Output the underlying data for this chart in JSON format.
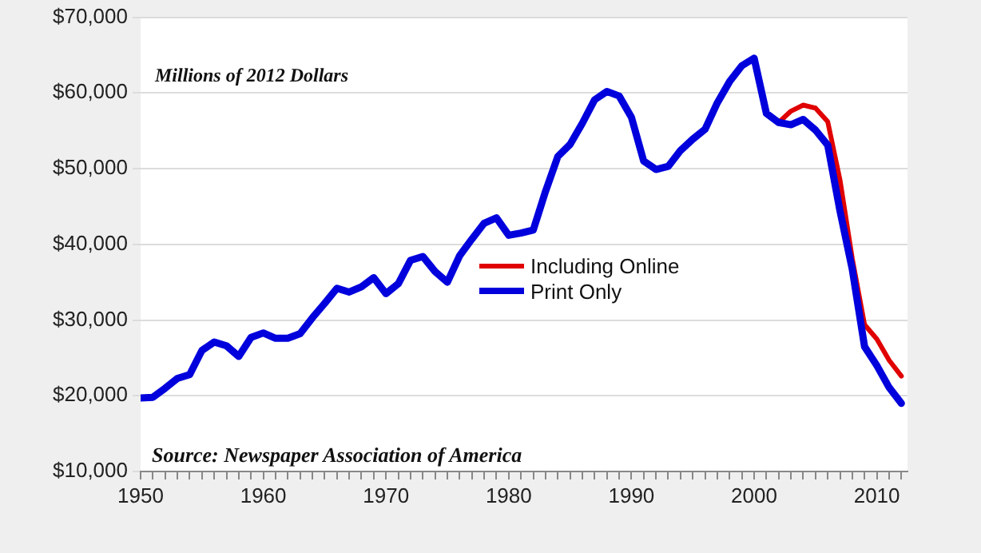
{
  "chart_data": {
    "type": "line",
    "annotations": [
      "Millions of 2012 Dollars",
      "Source: Newspaper Association of America"
    ],
    "x": [
      1950,
      1951,
      1952,
      1953,
      1954,
      1955,
      1956,
      1957,
      1958,
      1959,
      1960,
      1961,
      1962,
      1963,
      1964,
      1965,
      1966,
      1967,
      1968,
      1969,
      1970,
      1971,
      1972,
      1973,
      1974,
      1975,
      1976,
      1977,
      1978,
      1979,
      1980,
      1981,
      1982,
      1983,
      1984,
      1985,
      1986,
      1987,
      1988,
      1989,
      1990,
      1991,
      1992,
      1993,
      1994,
      1995,
      1996,
      1997,
      1998,
      1999,
      2000,
      2001,
      2002,
      2003,
      2004,
      2005,
      2006,
      2007,
      2008,
      2009,
      2010,
      2011,
      2012
    ],
    "series": [
      {
        "name": "Including Online",
        "color": "#e00000",
        "values": [
          null,
          null,
          null,
          null,
          null,
          null,
          null,
          null,
          null,
          null,
          null,
          null,
          null,
          null,
          null,
          null,
          null,
          null,
          null,
          null,
          null,
          null,
          null,
          null,
          null,
          null,
          null,
          null,
          null,
          null,
          null,
          null,
          null,
          null,
          null,
          null,
          null,
          null,
          null,
          null,
          null,
          null,
          null,
          null,
          null,
          null,
          null,
          null,
          null,
          null,
          null,
          null,
          56100,
          57600,
          58400,
          58000,
          56200,
          48500,
          38100,
          29400,
          27500,
          24700,
          22600
        ]
      },
      {
        "name": "Print Only",
        "color": "#0000dd",
        "values": [
          19700,
          19800,
          21000,
          22300,
          22800,
          26000,
          27100,
          26600,
          25200,
          27700,
          28300,
          27600,
          27600,
          28200,
          30300,
          32200,
          34200,
          33700,
          34400,
          35600,
          33500,
          34800,
          37900,
          38400,
          36400,
          35000,
          38500,
          40700,
          42800,
          43500,
          41200,
          41500,
          41900,
          47000,
          51600,
          53200,
          56000,
          59100,
          60200,
          59600,
          56800,
          51000,
          49900,
          50300,
          52400,
          53900,
          55200,
          58700,
          61500,
          63600,
          64600,
          57300,
          56100,
          55800,
          56500,
          55100,
          53100,
          44400,
          36700,
          26500,
          24000,
          21100,
          19000
        ]
      }
    ],
    "xlim": [
      1950,
      2012.5
    ],
    "xticks": [
      1950,
      {
        "value": 1951,
        "label": null
      },
      {
        "value": 1952,
        "label": null
      },
      {
        "value": 1953,
        "label": null
      },
      {
        "value": 1954,
        "label": null
      },
      {
        "value": 1955,
        "label": null
      },
      {
        "value": 1956,
        "label": null
      },
      {
        "value": 1957,
        "label": null
      },
      {
        "value": 1958,
        "label": null
      },
      {
        "value": 1959,
        "label": null
      },
      1960,
      {
        "value": 1961,
        "label": null
      },
      {
        "value": 1962,
        "label": null
      },
      {
        "value": 1963,
        "label": null
      },
      {
        "value": 1964,
        "label": null
      },
      {
        "value": 1965,
        "label": null
      },
      {
        "value": 1966,
        "label": null
      },
      {
        "value": 1967,
        "label": null
      },
      {
        "value": 1968,
        "label": null
      },
      {
        "value": 1969,
        "label": null
      },
      1970,
      {
        "value": 1971,
        "label": null
      },
      {
        "value": 1972,
        "label": null
      },
      {
        "value": 1973,
        "label": null
      },
      {
        "value": 1974,
        "label": null
      },
      {
        "value": 1975,
        "label": null
      },
      {
        "value": 1976,
        "label": null
      },
      {
        "value": 1977,
        "label": null
      },
      {
        "value": 1978,
        "label": null
      },
      {
        "value": 1979,
        "label": null
      },
      1980,
      {
        "value": 1981,
        "label": null
      },
      {
        "value": 1982,
        "label": null
      },
      {
        "value": 1983,
        "label": null
      },
      {
        "value": 1984,
        "label": null
      },
      {
        "value": 1985,
        "label": null
      },
      {
        "value": 1986,
        "label": null
      },
      {
        "value": 1987,
        "label": null
      },
      {
        "value": 1988,
        "label": null
      },
      {
        "value": 1989,
        "label": null
      },
      1990,
      {
        "value": 1991,
        "label": null
      },
      {
        "value": 1992,
        "label": null
      },
      {
        "value": 1993,
        "label": null
      },
      {
        "value": 1994,
        "label": null
      },
      {
        "value": 1995,
        "label": null
      },
      {
        "value": 1996,
        "label": null
      },
      {
        "value": 1997,
        "label": null
      },
      {
        "value": 1998,
        "label": null
      },
      {
        "value": 1999,
        "label": null
      },
      2000,
      {
        "value": 2001,
        "label": null
      },
      {
        "value": 2002,
        "label": null
      },
      {
        "value": 2003,
        "label": null
      },
      {
        "value": 2004,
        "label": null
      },
      {
        "value": 2005,
        "label": null
      },
      {
        "value": 2006,
        "label": null
      },
      {
        "value": 2007,
        "label": null
      },
      {
        "value": 2008,
        "label": null
      },
      {
        "value": 2009,
        "label": null
      },
      2010,
      {
        "value": 2011,
        "label": null
      },
      {
        "value": 2012,
        "label": null
      }
    ],
    "ylim": [
      10000,
      70000
    ],
    "yticks": [
      {
        "value": 10000,
        "label": "$10,000"
      },
      {
        "value": 20000,
        "label": "$20,000"
      },
      {
        "value": 30000,
        "label": "$30,000"
      },
      {
        "value": 40000,
        "label": "$40,000"
      },
      {
        "value": 50000,
        "label": "$50,000"
      },
      {
        "value": 60000,
        "label": "$60,000"
      },
      {
        "value": 70000,
        "label": "$70,000"
      }
    ],
    "grid": "y",
    "legend": "center",
    "marker": "none",
    "line_style": "solid"
  }
}
